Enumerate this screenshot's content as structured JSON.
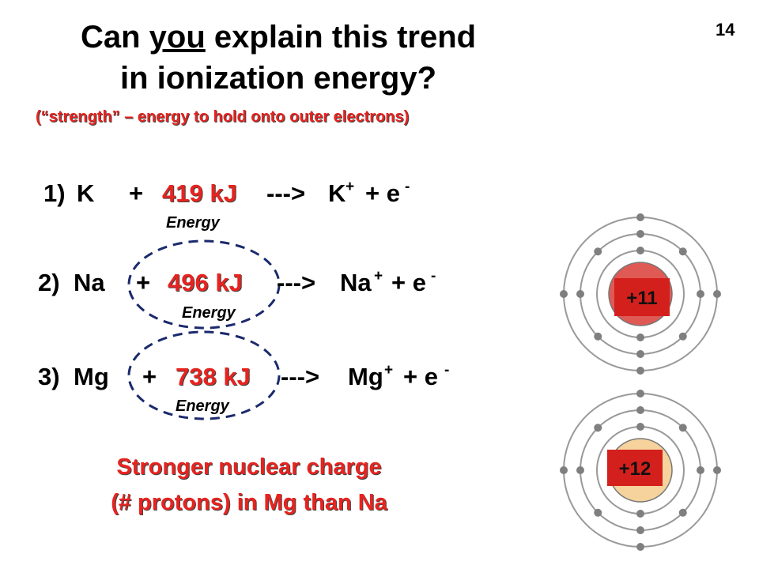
{
  "page_number": "14",
  "title": {
    "before": "Can",
    "underlined": "you",
    "after": "explain this trend",
    "line2": "in ionization energy?"
  },
  "subtitle": "(“strength” – energy to hold onto outer electrons)",
  "reactions": [
    {
      "number": "1)",
      "reactant": "K",
      "plus": "+",
      "energy": "419 kJ",
      "arrow": "--->",
      "product": "K",
      "charge": "+",
      "electron": "+ e",
      "electron_charge": "-",
      "energy_label": "Energy"
    },
    {
      "number": "2)",
      "reactant": "Na",
      "plus": "+",
      "energy": "496 kJ",
      "arrow": "--->",
      "product": "Na",
      "charge": "+",
      "electron": "+ e",
      "electron_charge": "-",
      "energy_label": "Energy"
    },
    {
      "number": "3)",
      "reactant": "Mg",
      "plus": "+",
      "energy": "738 kJ",
      "arrow": "--->",
      "product": "Mg",
      "charge": "+",
      "electron": "+ e",
      "electron_charge": "-",
      "energy_label": "Energy"
    }
  ],
  "conclusion": [
    "Stronger nuclear charge",
    "(# protons) in Mg than Na"
  ],
  "atoms": [
    {
      "label": "+11"
    },
    {
      "label": "+12"
    }
  ]
}
